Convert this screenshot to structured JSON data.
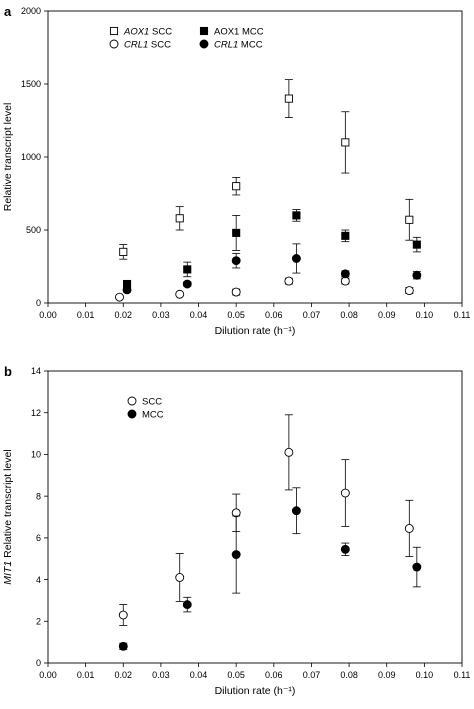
{
  "chart_data": [
    {
      "type": "scatter",
      "panel_label": "a",
      "xlabel": "Dilution rate (h⁻¹)",
      "ylabel": "Relative transcript level",
      "xlim": [
        0,
        0.11
      ],
      "ylim": [
        0,
        2000
      ],
      "x_ticks": [
        "0.00",
        "0.01",
        "0.02",
        "0.03",
        "0.04",
        "0.05",
        "0.06",
        "0.07",
        "0.08",
        "0.09",
        "0.10",
        "0.11"
      ],
      "y_ticks": [
        "0",
        "500",
        "1000",
        "1500",
        "2000"
      ],
      "grid": false,
      "legend_position": "top-left",
      "series": [
        {
          "name_italic": "AOX1",
          "name_rest": " SCC",
          "marker": "open-square",
          "x": [
            0.02,
            0.035,
            0.05,
            0.064,
            0.079,
            0.096
          ],
          "y": [
            350,
            580,
            800,
            1400,
            1100,
            570
          ],
          "err": [
            50,
            80,
            60,
            130,
            210,
            140
          ]
        },
        {
          "name_italic": "",
          "name_rest": "AOX1 MCC",
          "marker": "filled-square",
          "x": [
            0.021,
            0.037,
            0.05,
            0.066,
            0.079,
            0.098
          ],
          "y": [
            130,
            230,
            480,
            600,
            460,
            400
          ],
          "err": [
            20,
            50,
            120,
            40,
            40,
            50
          ]
        },
        {
          "name_italic": "CRL1",
          "name_rest": " SCC",
          "marker": "open-circle",
          "x": [
            0.019,
            0.035,
            0.05,
            0.064,
            0.079,
            0.096
          ],
          "y": [
            40,
            60,
            75,
            150,
            150,
            85
          ],
          "err": [
            5,
            5,
            20,
            20,
            20,
            20
          ]
        },
        {
          "name_italic": "CRL1",
          "name_rest": " MCC",
          "marker": "filled-circle",
          "x": [
            0.021,
            0.037,
            0.05,
            0.066,
            0.079,
            0.098
          ],
          "y": [
            90,
            130,
            290,
            305,
            200,
            190
          ],
          "err": [
            15,
            15,
            50,
            100,
            20,
            25
          ]
        }
      ]
    },
    {
      "type": "scatter",
      "panel_label": "b",
      "xlabel": "Dilution rate (h⁻¹)",
      "ylabel_italic": "MIT1",
      "ylabel_rest": " Relative transcript level",
      "xlim": [
        0,
        0.11
      ],
      "ylim": [
        0,
        14
      ],
      "x_ticks": [
        "0.00",
        "0.01",
        "0.02",
        "0.03",
        "0.04",
        "0.05",
        "0.06",
        "0.07",
        "0.08",
        "0.09",
        "0.10",
        "0.11"
      ],
      "y_ticks": [
        "0",
        "2",
        "4",
        "6",
        "8",
        "10",
        "12",
        "14"
      ],
      "grid": false,
      "legend_position": "top-left",
      "series": [
        {
          "name_italic": "",
          "name_rest": "SCC",
          "marker": "open-circle",
          "x": [
            0.02,
            0.035,
            0.05,
            0.064,
            0.079,
            0.096
          ],
          "y": [
            2.3,
            4.1,
            7.2,
            10.1,
            8.15,
            6.45
          ],
          "err": [
            0.5,
            1.15,
            0.9,
            1.8,
            1.6,
            1.35
          ]
        },
        {
          "name_italic": "",
          "name_rest": "MCC",
          "marker": "filled-circle",
          "x": [
            0.02,
            0.037,
            0.05,
            0.066,
            0.079,
            0.098
          ],
          "y": [
            0.8,
            2.8,
            5.2,
            7.3,
            5.45,
            4.6
          ],
          "err": [
            0.15,
            0.35,
            1.85,
            1.1,
            0.3,
            0.95
          ]
        }
      ]
    }
  ]
}
